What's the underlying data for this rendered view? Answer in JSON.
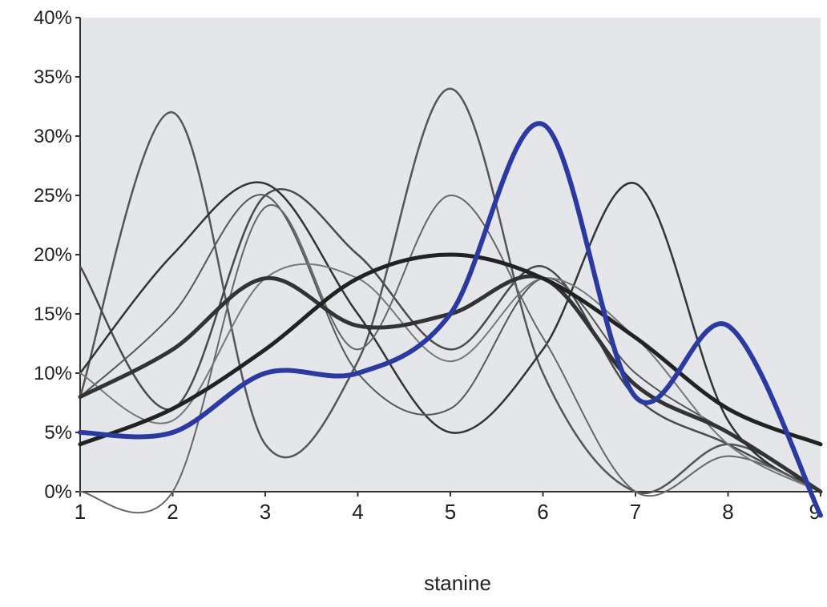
{
  "chart_data": {
    "type": "line",
    "title": "",
    "xlabel": "stanine",
    "ylabel": "",
    "x": [
      1,
      2,
      3,
      4,
      5,
      6,
      7,
      8,
      9
    ],
    "xlim": [
      1,
      9
    ],
    "ylim": [
      0,
      40
    ],
    "yticks": [
      "0%",
      "5%",
      "10%",
      "15%",
      "20%",
      "25%",
      "30%",
      "35%",
      "40%"
    ],
    "xticks": [
      "1",
      "2",
      "3",
      "4",
      "5",
      "6",
      "7",
      "8",
      "9"
    ],
    "grid": false,
    "series": [
      {
        "values": [
          8,
          32,
          4,
          11,
          34,
          10,
          0,
          4,
          0
        ],
        "color": "#555555",
        "width": 2.5
      },
      {
        "values": [
          19,
          7,
          25,
          20,
          12,
          19,
          8,
          4,
          0
        ],
        "color": "#4a4a4a",
        "width": 2.5
      },
      {
        "values": [
          10,
          20,
          26,
          15,
          5,
          12,
          26,
          6,
          0
        ],
        "color": "#333333",
        "width": 2.5
      },
      {
        "values": [
          8,
          15,
          25,
          10,
          7,
          18,
          10,
          5,
          0
        ],
        "color": "#555555",
        "width": 2
      },
      {
        "values": [
          0,
          0,
          24,
          12,
          25,
          13,
          0,
          3,
          0
        ],
        "color": "#666666",
        "width": 2
      },
      {
        "values": [
          10,
          6,
          18,
          18,
          11,
          18,
          13,
          4,
          0
        ],
        "color": "#777777",
        "width": 2
      },
      {
        "values": [
          8,
          12,
          18,
          14,
          15,
          18,
          9,
          5,
          0
        ],
        "color": "#333333",
        "width": 5
      },
      {
        "values": [
          4,
          7,
          12,
          18,
          20,
          18,
          13,
          7,
          4
        ],
        "color": "#222222",
        "width": 5
      },
      {
        "values": [
          5,
          5,
          10,
          10,
          15,
          31,
          8,
          14,
          -2
        ],
        "color": "#2b3a9e",
        "width": 6
      }
    ]
  }
}
